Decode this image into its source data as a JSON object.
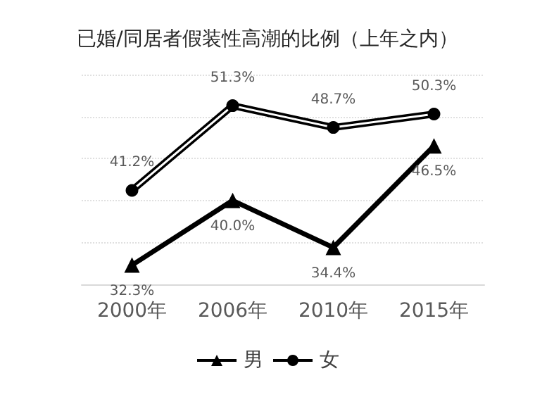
{
  "chart_data": {
    "type": "line",
    "title": "已婚/同居者假装性高潮的比例（上年之内）",
    "categories": [
      "2000年",
      "2006年",
      "2010年",
      "2015年"
    ],
    "series": [
      {
        "name": "男",
        "color": "#000000",
        "marker": "triangle",
        "values": [
          32.3,
          40.0,
          34.4,
          46.5
        ],
        "value_labels": [
          "32.3%",
          "40.0%",
          "34.4%",
          "46.5%"
        ]
      },
      {
        "name": "女",
        "color": "#000000",
        "marker": "circle",
        "values": [
          41.2,
          51.3,
          48.7,
          50.3
        ],
        "value_labels": [
          "41.2%",
          "51.3%",
          "48.7%",
          "50.3%"
        ]
      }
    ],
    "ylim": [
      30,
      55
    ],
    "yticks": [
      {
        "value": 30,
        "label": null
      },
      {
        "value": 35,
        "label": null
      },
      {
        "value": 40,
        "label": null
      },
      {
        "value": 45,
        "label": null
      },
      {
        "value": 50,
        "label": null
      },
      {
        "value": 55,
        "label": null
      }
    ],
    "tick_labels": "x",
    "grid": "y",
    "legend": "bottom",
    "line_style": "solid"
  }
}
